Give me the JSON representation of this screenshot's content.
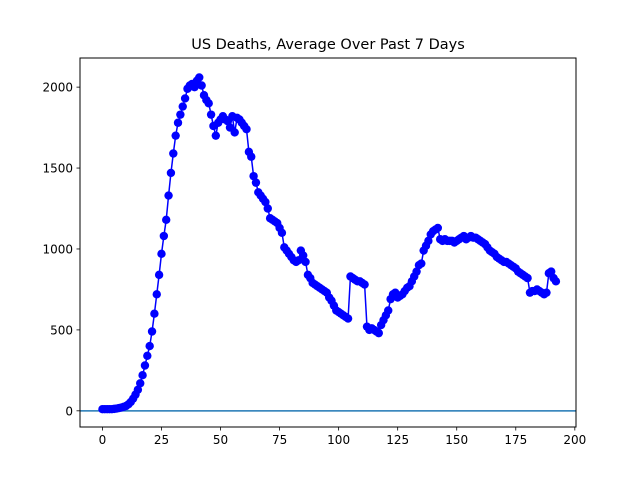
{
  "chart_data": {
    "type": "line",
    "title": "US Deaths, Average Over Past 7 Days",
    "xlabel": "",
    "ylabel": "",
    "xlim": [
      -9.5,
      200.5
    ],
    "ylim": [
      -100,
      2180
    ],
    "x_ticks": [
      0,
      25,
      50,
      75,
      100,
      125,
      150,
      175,
      200
    ],
    "y_ticks": [
      0,
      500,
      1000,
      1500,
      2000
    ],
    "grid": false,
    "legend": "none",
    "reference_lines": [
      {
        "orientation": "horizontal",
        "y": 0,
        "color": "#1f77b4"
      }
    ],
    "series": [
      {
        "color": "#0000ff",
        "marker": "circle",
        "x_start": 0,
        "x_step": 1,
        "values": [
          10,
          10,
          10,
          10,
          10,
          12,
          14,
          17,
          20,
          25,
          30,
          40,
          55,
          75,
          100,
          130,
          170,
          220,
          280,
          340,
          400,
          490,
          600,
          720,
          840,
          970,
          1080,
          1180,
          1330,
          1470,
          1590,
          1700,
          1780,
          1830,
          1880,
          1930,
          1990,
          2010,
          2020,
          2000,
          2040,
          2060,
          2010,
          1950,
          1920,
          1900,
          1830,
          1760,
          1700,
          1780,
          1800,
          1820,
          1800,
          1790,
          1750,
          1820,
          1720,
          1810,
          1800,
          1780,
          1760,
          1740,
          1600,
          1570,
          1450,
          1410,
          1350,
          1330,
          1310,
          1290,
          1250,
          1190,
          1180,
          1170,
          1160,
          1130,
          1100,
          1010,
          990,
          970,
          950,
          930,
          920,
          930,
          990,
          960,
          920,
          840,
          820,
          790,
          780,
          770,
          760,
          750,
          740,
          730,
          700,
          680,
          650,
          620,
          610,
          600,
          590,
          580,
          570,
          830,
          820,
          810,
          800,
          800,
          790,
          780,
          520,
          500,
          510,
          500,
          490,
          480,
          530,
          560,
          590,
          620,
          690,
          720,
          730,
          700,
          710,
          720,
          740,
          760,
          770,
          800,
          830,
          860,
          900,
          910,
          990,
          1020,
          1050,
          1090,
          1110,
          1120,
          1130,
          1060,
          1050,
          1060,
          1050,
          1050,
          1050,
          1040,
          1050,
          1060,
          1070,
          1080,
          1060,
          1070,
          1080,
          1070,
          1070,
          1060,
          1050,
          1040,
          1030,
          1010,
          990,
          980,
          970,
          950,
          940,
          930,
          920,
          920,
          910,
          900,
          890,
          880,
          860,
          850,
          840,
          830,
          820,
          730,
          740,
          740,
          750,
          740,
          730,
          720,
          730,
          850,
          860,
          820,
          800
        ]
      }
    ]
  }
}
